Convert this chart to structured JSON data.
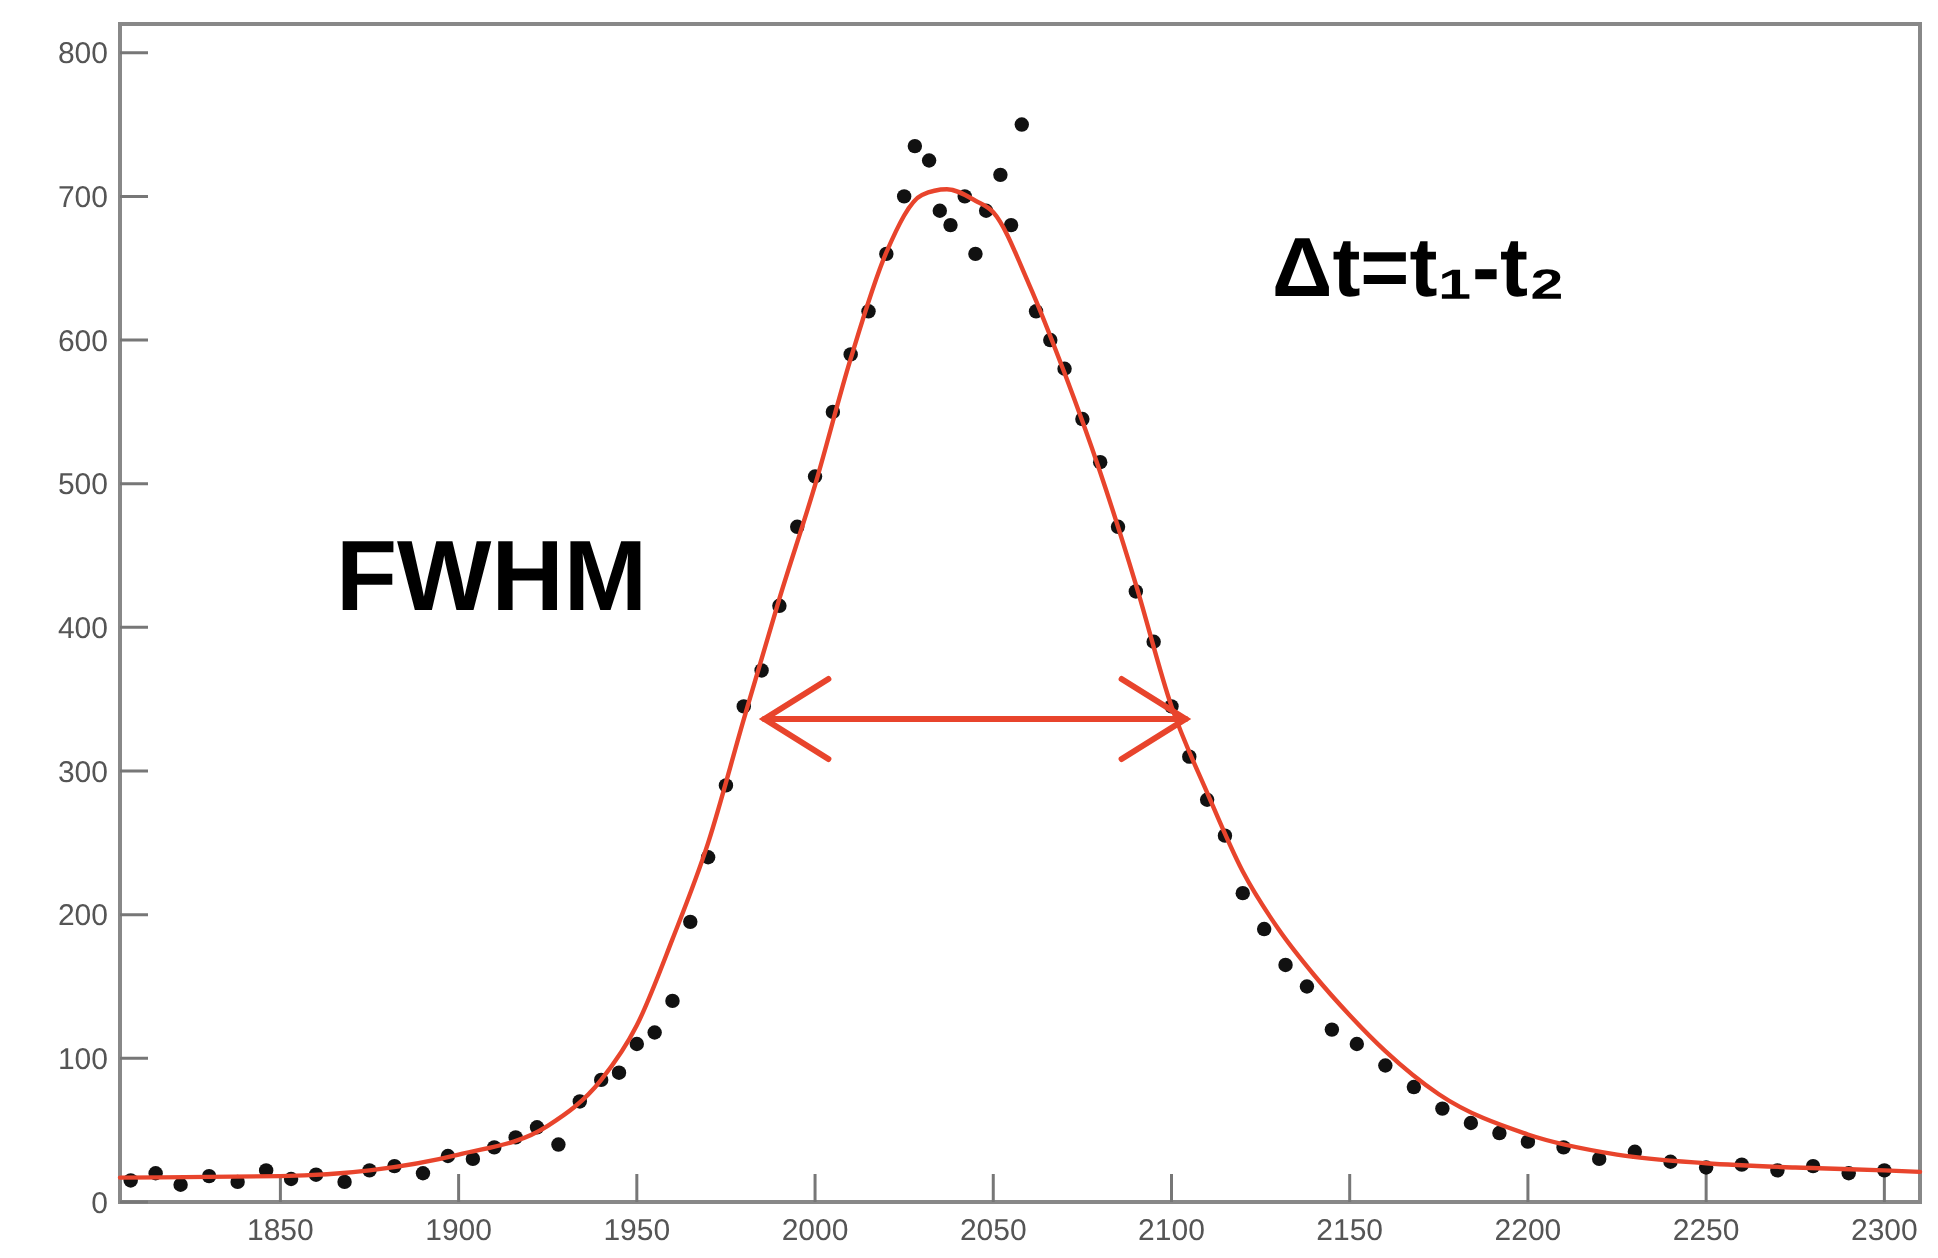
{
  "chart_data": {
    "type": "scatter",
    "annotations": [
      "FWHM",
      "Δt=t₁-t₂"
    ],
    "xlim": [
      1805,
      2310
    ],
    "xticks": [
      1850,
      1900,
      1950,
      2000,
      2050,
      2100,
      2150,
      2200,
      2250,
      2300
    ],
    "ylim": [
      0,
      820
    ],
    "yticks": [
      0,
      100,
      200,
      300,
      400,
      500,
      600,
      700,
      800
    ],
    "grid": false,
    "marker": "circle",
    "series": [
      {
        "color": "#111111",
        "x": [
          1808,
          1815,
          1822,
          1830,
          1838,
          1846,
          1853,
          1860,
          1868,
          1875,
          1882,
          1890,
          1897,
          1904,
          1910,
          1916,
          1922,
          1928,
          1934,
          1940,
          1945,
          1950,
          1955,
          1960,
          1965,
          1970,
          1975,
          1980,
          1985,
          1990,
          1995,
          2000,
          2005,
          2010,
          2015,
          2020,
          2025,
          2028,
          2032,
          2035,
          2038,
          2042,
          2045,
          2048,
          2052,
          2055,
          2058,
          2062,
          2066,
          2070,
          2075,
          2080,
          2085,
          2090,
          2095,
          2100,
          2105,
          2110,
          2115,
          2120,
          2126,
          2132,
          2138,
          2145,
          2152,
          2160,
          2168,
          2176,
          2184,
          2192,
          2200,
          2210,
          2220,
          2230,
          2240,
          2250,
          2260,
          2270,
          2280,
          2290,
          2300
        ],
        "values": [
          15,
          20,
          12,
          18,
          14,
          22,
          16,
          19,
          14,
          22,
          25,
          20,
          32,
          30,
          38,
          45,
          52,
          40,
          70,
          85,
          90,
          110,
          118,
          140,
          195,
          240,
          290,
          345,
          370,
          415,
          470,
          505,
          550,
          590,
          620,
          660,
          700,
          735,
          725,
          690,
          680,
          700,
          660,
          690,
          715,
          680,
          750,
          620,
          600,
          580,
          545,
          515,
          470,
          425,
          390,
          345,
          310,
          280,
          255,
          215,
          190,
          165,
          150,
          120,
          110,
          95,
          80,
          65,
          55,
          48,
          42,
          38,
          30,
          35,
          28,
          24,
          26,
          22,
          25,
          20,
          22
        ]
      },
      {
        "type": "line",
        "color": "#e8442c",
        "marker": "none",
        "line_style": "solid",
        "x": [
          1805,
          1850,
          1875,
          1900,
          1925,
          1940,
          1950,
          1960,
          1970,
          1980,
          1990,
          2000,
          2010,
          2020,
          2030,
          2037,
          2045,
          2050,
          2060,
          2070,
          2080,
          2090,
          2100,
          2110,
          2120,
          2130,
          2140,
          2150,
          2160,
          2175,
          2200,
          2225,
          2250,
          2275,
          2300,
          2310
        ],
        "values": [
          17,
          18,
          22,
          33,
          53,
          85,
          123,
          183,
          250,
          336,
          420,
          499,
          587,
          661,
          701,
          705,
          697,
          689,
          639,
          577,
          508,
          430,
          345,
          285,
          230,
          190,
          158,
          130,
          105,
          75,
          47,
          33,
          27,
          24,
          22,
          21
        ]
      }
    ]
  }
}
